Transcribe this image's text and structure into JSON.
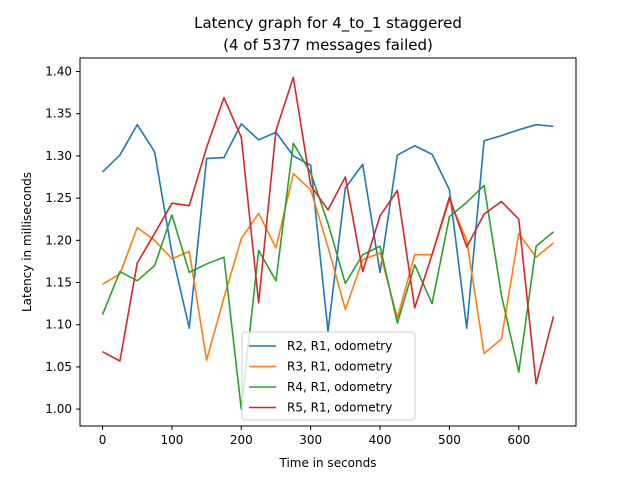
{
  "chart_data": {
    "type": "line",
    "title": "Latency graph for 4_to_1 staggered",
    "subtitle": "(4 of 5377 messages failed)",
    "xlabel": "Time in seconds",
    "ylabel": "Latency in milliseconds",
    "xlim": [
      -32.5,
      682.5
    ],
    "ylim": [
      0.98,
      1.416
    ],
    "xticks": [
      0,
      100,
      200,
      300,
      400,
      500,
      600
    ],
    "yticks": [
      1.0,
      1.05,
      1.1,
      1.15,
      1.2,
      1.25,
      1.3,
      1.35,
      1.4
    ],
    "xtick_labels": [
      "0",
      "100",
      "200",
      "300",
      "400",
      "500",
      "600"
    ],
    "ytick_labels": [
      "1.00",
      "1.05",
      "1.10",
      "1.15",
      "1.20",
      "1.25",
      "1.30",
      "1.35",
      "1.40"
    ],
    "x": [
      0,
      25,
      50,
      75,
      100,
      125,
      150,
      175,
      200,
      225,
      250,
      275,
      300,
      325,
      350,
      375,
      400,
      425,
      450,
      475,
      500,
      525,
      550,
      575,
      600,
      625,
      650
    ],
    "legend_position": "bottom-center",
    "series": [
      {
        "name": "R2, R1, odometry",
        "color": "#1f77b4",
        "values": [
          1.281,
          1.301,
          1.337,
          1.305,
          1.185,
          1.096,
          1.297,
          1.298,
          1.338,
          1.319,
          1.328,
          1.3,
          1.289,
          1.092,
          1.262,
          1.29,
          1.162,
          1.301,
          1.312,
          1.302,
          1.26,
          1.096,
          1.318,
          1.324,
          1.331,
          1.337,
          1.335
        ]
      },
      {
        "name": "R3, R1, odometry",
        "color": "#ff7f0e",
        "values": [
          1.148,
          1.16,
          1.215,
          1.2,
          1.178,
          1.187,
          1.058,
          1.132,
          1.202,
          1.232,
          1.191,
          1.279,
          1.26,
          1.192,
          1.118,
          1.177,
          1.185,
          1.108,
          1.183,
          1.183,
          1.248,
          1.2,
          1.066,
          1.083,
          1.208,
          1.18,
          1.197
        ]
      },
      {
        "name": "R4, R1, odometry",
        "color": "#2ca02c",
        "values": [
          1.112,
          1.163,
          1.152,
          1.17,
          1.23,
          1.162,
          1.172,
          1.18,
          1.0,
          1.188,
          1.152,
          1.315,
          1.28,
          1.22,
          1.149,
          1.183,
          1.193,
          1.102,
          1.171,
          1.125,
          1.228,
          1.245,
          1.265,
          1.135,
          1.044,
          1.193,
          1.21
        ]
      },
      {
        "name": "R5, R1, odometry",
        "color": "#d62728",
        "values": [
          1.068,
          1.057,
          1.173,
          1.208,
          1.244,
          1.241,
          1.31,
          1.369,
          1.322,
          1.126,
          1.33,
          1.393,
          1.265,
          1.236,
          1.275,
          1.163,
          1.229,
          1.259,
          1.12,
          1.183,
          1.251,
          1.192,
          1.231,
          1.246,
          1.225,
          1.03,
          1.11
        ]
      }
    ]
  }
}
